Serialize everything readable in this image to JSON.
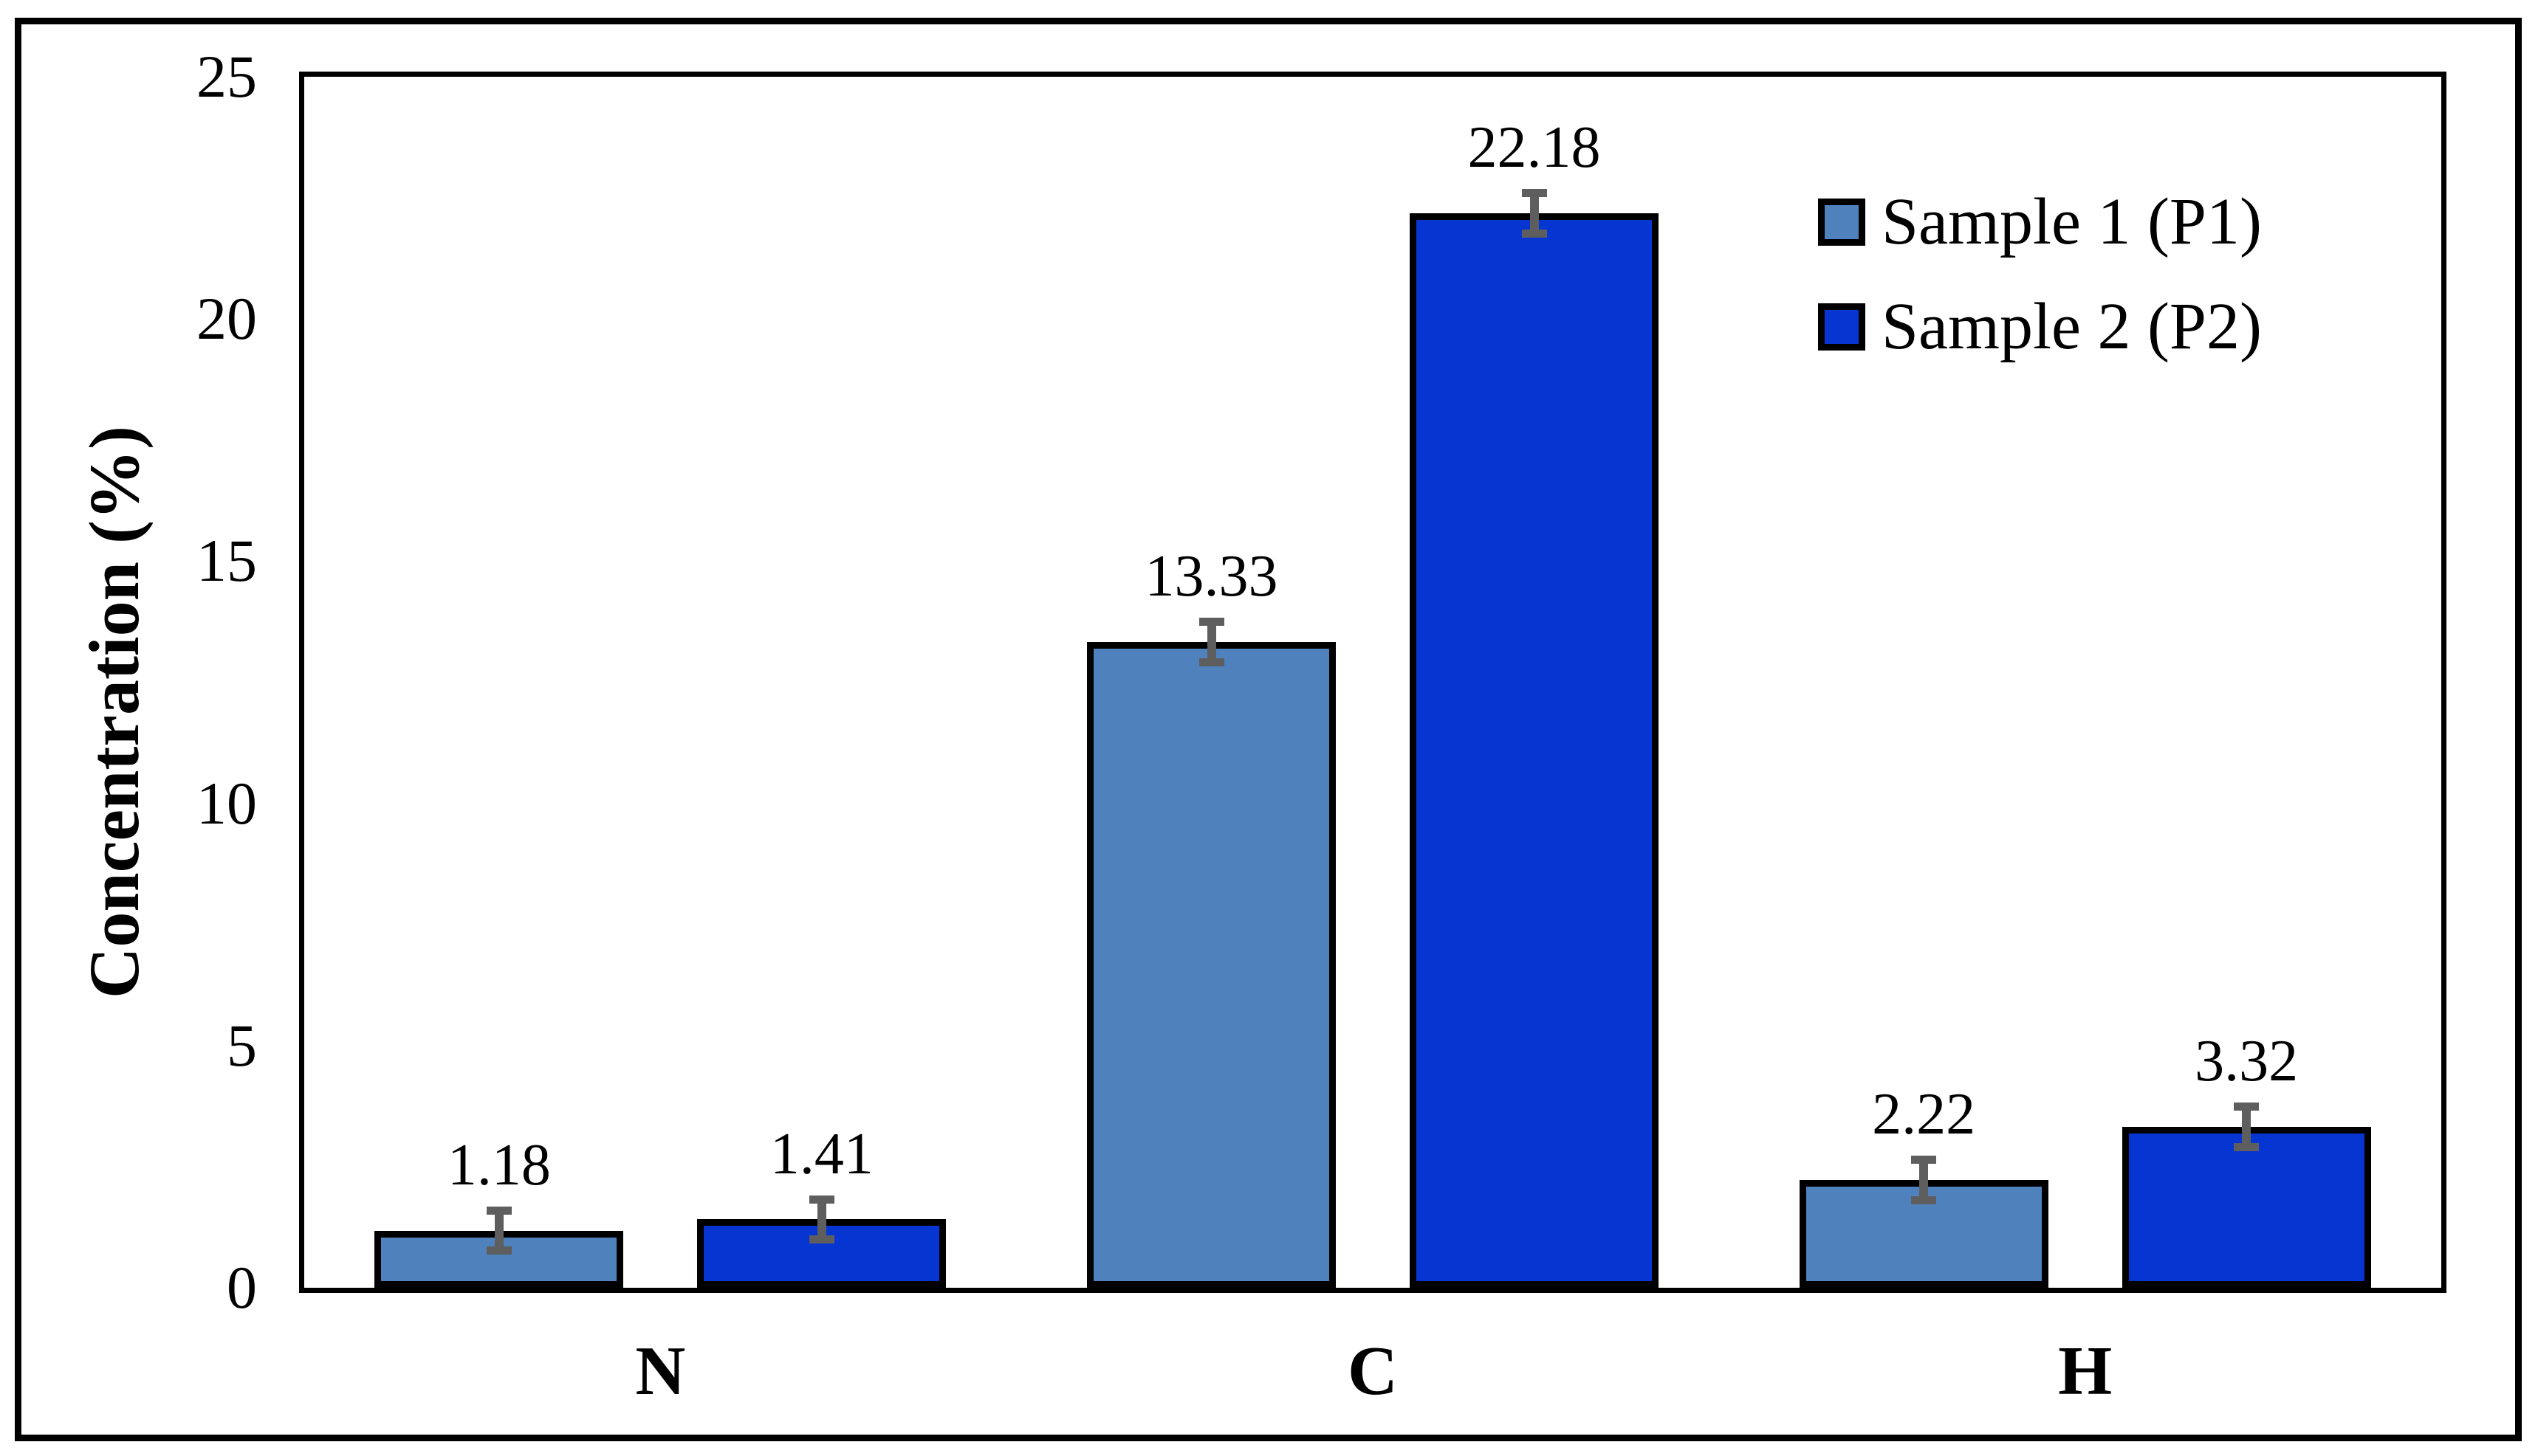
{
  "figure": {
    "background": "#FFFFFF",
    "border_color": "#000000"
  },
  "chart_data": {
    "type": "bar",
    "title": "",
    "xlabel": "",
    "ylabel": "Concentration (%)",
    "ylim": [
      0,
      25
    ],
    "yticks": [
      0,
      5,
      10,
      15,
      20,
      25
    ],
    "grid": false,
    "legend_position": "inside-top-right",
    "categories": [
      "N",
      "C",
      "H"
    ],
    "series": [
      {
        "name": "Sample 1 (P1)",
        "color": "#4F81BD",
        "values": [
          1.18,
          13.33,
          2.22
        ],
        "value_labels": [
          "1.18",
          "13.33",
          "2.22"
        ],
        "error": 0.5
      },
      {
        "name": "Sample 2 (P2)",
        "color": "#0635D2",
        "values": [
          1.41,
          22.18,
          3.32
        ],
        "value_labels": [
          "1.41",
          "22.18",
          "3.32"
        ],
        "error": 0.5
      }
    ],
    "error_bar_color": "#5E5E5E",
    "bar_border_color": "#000000"
  }
}
